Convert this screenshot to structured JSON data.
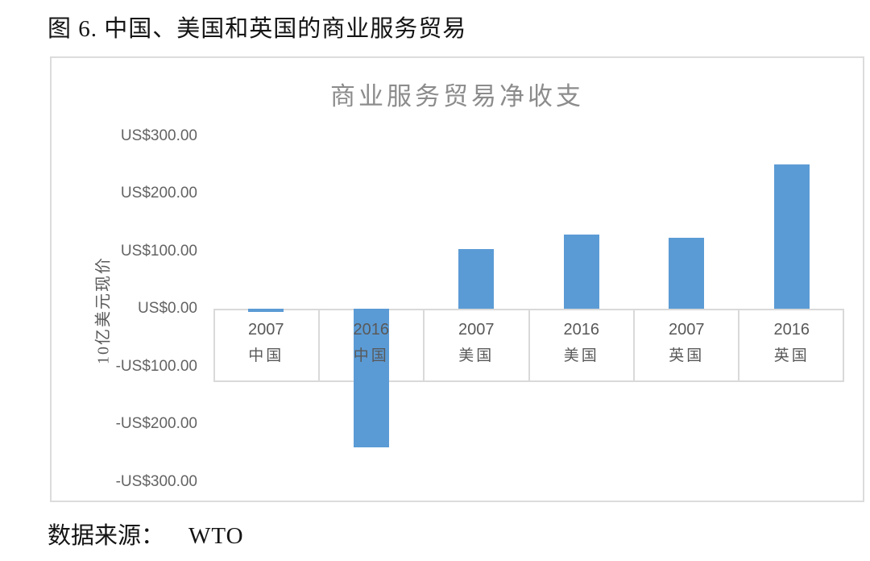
{
  "page": {
    "figure_caption": "图 6. 中国、美国和英国的商业服务贸易",
    "source_label": "数据来源：",
    "source_value": "WTO"
  },
  "chart_data": {
    "type": "bar",
    "title": "商业服务贸易净收支",
    "ylabel": "10亿美元现价",
    "categories": [
      "2007 中国",
      "2016 中国",
      "2007 美国",
      "2016 美国",
      "2007 英国",
      "2016 英国"
    ],
    "category_labels": [
      {
        "year": "2007",
        "country": "中国"
      },
      {
        "year": "2016",
        "country": "中国"
      },
      {
        "year": "2007",
        "country": "美国"
      },
      {
        "year": "2016",
        "country": "美国"
      },
      {
        "year": "2007",
        "country": "英国"
      },
      {
        "year": "2016",
        "country": "英国"
      }
    ],
    "values": [
      -5,
      -240,
      103,
      128,
      123,
      250
    ],
    "ylim": [
      -300,
      300
    ],
    "y_ticks": [
      {
        "value": 300,
        "label": "US$300.00"
      },
      {
        "value": 200,
        "label": "US$200.00"
      },
      {
        "value": 100,
        "label": "US$100.00"
      },
      {
        "value": 0,
        "label": "US$0.00"
      },
      {
        "value": -100,
        "label": "-US$100.00"
      },
      {
        "value": -200,
        "label": "-US$200.00"
      },
      {
        "value": -300,
        "label": "-US$300.00"
      }
    ],
    "bar_color": "#5b9bd5",
    "grid": false,
    "legend": "none"
  }
}
